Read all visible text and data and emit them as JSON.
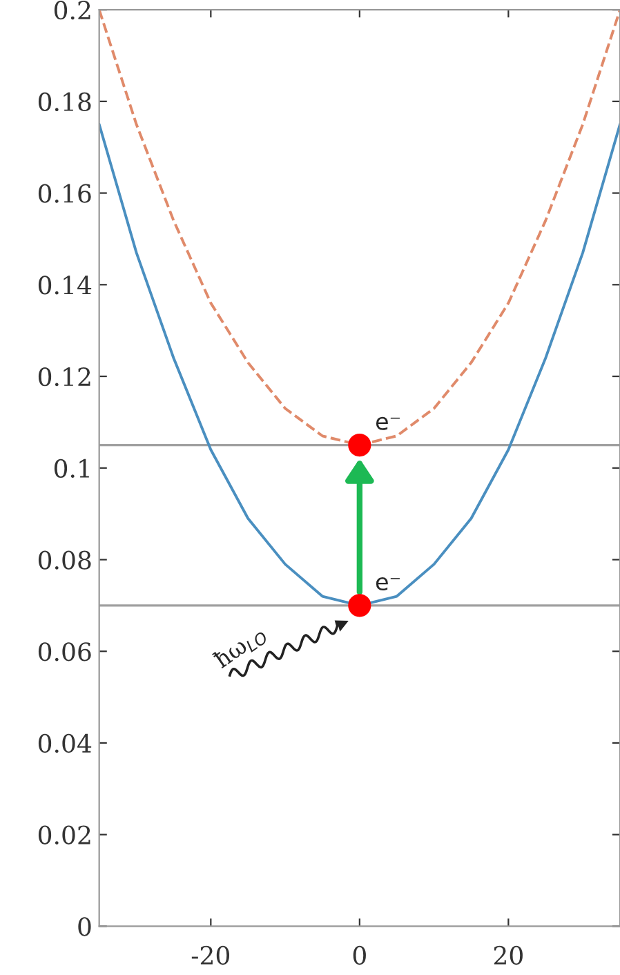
{
  "chart_data": {
    "type": "line",
    "xlim": [
      -35,
      35
    ],
    "ylim": [
      0,
      0.2
    ],
    "xticks": [
      -20,
      0,
      20
    ],
    "yticks": [
      0,
      0.02,
      0.04,
      0.06,
      0.08,
      0.1,
      0.12,
      0.14,
      0.16,
      0.18,
      0.2
    ],
    "grid": false,
    "series": [
      {
        "color": "#4a8fc0",
        "line_style": "solid",
        "x": [
          -35,
          -30,
          -25,
          -20,
          -15,
          -10,
          -5,
          0,
          5,
          10,
          15,
          20,
          25,
          30,
          35
        ],
        "values": [
          0.175,
          0.147,
          0.124,
          0.104,
          0.089,
          0.079,
          0.072,
          0.07,
          0.072,
          0.079,
          0.089,
          0.104,
          0.124,
          0.147,
          0.175
        ]
      },
      {
        "color": "#e08a6a",
        "line_style": "dashed",
        "x": [
          -35,
          -30,
          -25,
          -20,
          -15,
          -10,
          -5,
          0,
          5,
          10,
          15,
          20,
          25,
          30,
          35
        ],
        "values": [
          0.2,
          0.175,
          0.154,
          0.136,
          0.123,
          0.113,
          0.107,
          0.105,
          0.107,
          0.113,
          0.123,
          0.136,
          0.154,
          0.175,
          0.2
        ]
      },
      {
        "type": "scatter",
        "color": "#ff0000",
        "marker": "circle",
        "x": [
          0,
          0
        ],
        "values": [
          0.07,
          0.105
        ]
      }
    ],
    "ref_lines": [
      {
        "axis": "y",
        "value": 0.07,
        "color": "#a0a0a0"
      },
      {
        "axis": "y",
        "value": 0.105,
        "color": "#a0a0a0"
      }
    ],
    "annotations": [
      {
        "text": "e⁻",
        "x": 0,
        "y": 0.07
      },
      {
        "text": "e⁻",
        "x": 0,
        "y": 0.105
      },
      "ħω$_{LO}$"
    ]
  }
}
